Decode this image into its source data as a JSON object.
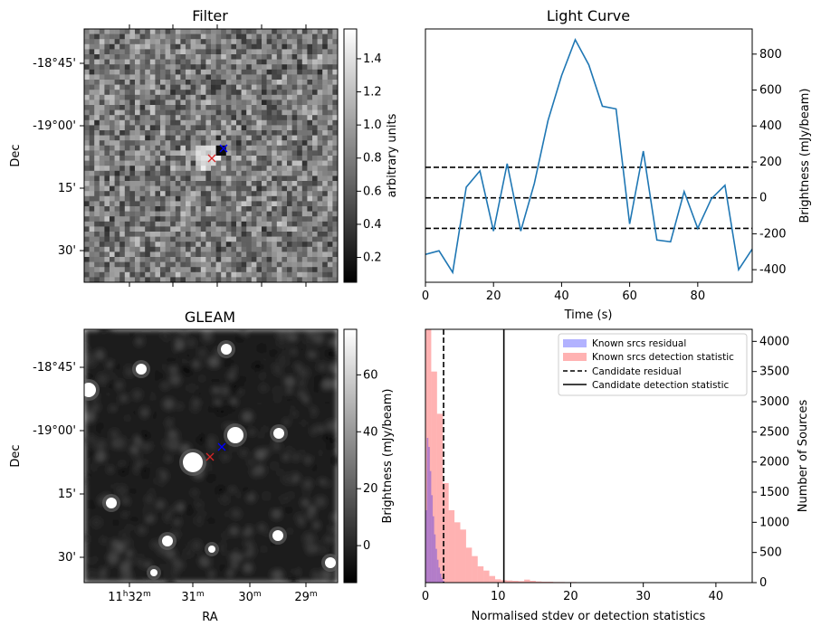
{
  "chart_data": [
    {
      "type": "heatmap",
      "title": "Filter",
      "ylabel": "Dec",
      "xlabel": "",
      "y_ticks": [
        "-18°45'",
        "-19°00'",
        "15'",
        "30'"
      ],
      "colorbar": {
        "label": "arbitrary units",
        "range": [
          0.05,
          1.58
        ],
        "ticks": [
          0.2,
          0.4,
          0.6,
          0.8,
          1.0,
          1.2,
          1.4
        ]
      },
      "markers": [
        {
          "symbol": "x",
          "color": "#d62728"
        },
        {
          "symbol": "x",
          "color": "#0000ff"
        }
      ],
      "colors": {
        "map": "#808080"
      }
    },
    {
      "type": "line",
      "title": "Light Curve",
      "xlabel": "Time (s)",
      "ylabel": "Brightness (mJy/beam)",
      "xlim": [
        0,
        96
      ],
      "ylim": [
        -470,
        940
      ],
      "x_ticks": [
        0,
        20,
        40,
        60,
        80
      ],
      "y_ticks": [
        -400,
        -200,
        0,
        200,
        400,
        600,
        800
      ],
      "x": [
        0,
        4,
        8,
        12,
        16,
        20,
        24,
        28,
        32,
        36,
        40,
        44,
        48,
        52,
        56,
        60,
        64,
        68,
        72,
        76,
        80,
        84,
        88,
        92,
        96
      ],
      "series": [
        {
          "values": [
            -315,
            -295,
            -415,
            60,
            150,
            -185,
            190,
            -185,
            80,
            430,
            680,
            880,
            740,
            510,
            495,
            -145,
            260,
            -235,
            -245,
            35,
            -170,
            -5,
            70,
            -400,
            -285
          ],
          "color": "#1f77b4"
        }
      ],
      "hlines": [
        {
          "y": 170,
          "style": "dashed"
        },
        {
          "y": 0,
          "style": "dashed"
        },
        {
          "y": -170,
          "style": "dashed"
        }
      ],
      "grid": false
    },
    {
      "type": "heatmap",
      "title": "GLEAM",
      "ylabel": "Dec",
      "xlabel": "RA",
      "y_ticks": [
        "-18°45'",
        "-19°00'",
        "15'",
        "30'"
      ],
      "x_ticks": [
        {
          "h": "11",
          "hs": "h",
          "m": "32",
          "ms": "m"
        },
        {
          "h": "",
          "hs": "",
          "m": "31",
          "ms": "m"
        },
        {
          "h": "",
          "hs": "",
          "m": "30",
          "ms": "m"
        },
        {
          "h": "",
          "hs": "",
          "m": "29",
          "ms": "m"
        }
      ],
      "colorbar": {
        "label": "Brightness (mJy/beam)",
        "range": [
          -13,
          76
        ],
        "ticks": [
          0,
          20,
          40,
          60
        ]
      },
      "markers": [
        {
          "symbol": "x",
          "color": "#d62728"
        },
        {
          "symbol": "x",
          "color": "#0000ff"
        }
      ]
    },
    {
      "type": "bar",
      "title": "",
      "xlabel": "Normalised stdev or detection statistics",
      "ylabel": "Number of Sources",
      "xlim": [
        0,
        45
      ],
      "ylim": [
        0,
        4200
      ],
      "x_ticks": [
        0,
        10,
        20,
        30,
        40
      ],
      "y_ticks": [
        0,
        500,
        1000,
        1500,
        2000,
        2500,
        3000,
        3500,
        4000
      ],
      "legend_position": "top-right",
      "bin_width": 0.8,
      "series": [
        {
          "name": "Known srcs residual",
          "color": "#0000ff",
          "alpha": 0.3,
          "bin_starts": [
            0.0,
            0.2,
            0.4,
            0.6,
            0.8,
            1.0,
            1.2,
            1.4,
            1.6,
            1.8,
            2.0,
            2.2,
            2.4
          ],
          "bin_width": 0.2,
          "counts": [
            1200,
            2400,
            2250,
            1850,
            1450,
            1100,
            800,
            560,
            380,
            250,
            150,
            80,
            30
          ]
        },
        {
          "name": "Known srcs detection statistic",
          "color": "#ff0000",
          "alpha": 0.3,
          "bin_starts": [
            0.0,
            0.8,
            1.6,
            2.4,
            3.2,
            4.0,
            4.8,
            5.6,
            6.4,
            7.2,
            8.0,
            8.8,
            9.6,
            10.4,
            11.2,
            12.0,
            12.8,
            13.6,
            14.4,
            15.2,
            16.0,
            16.8,
            17.6,
            18.4,
            19.2,
            20.0,
            42.0
          ],
          "bin_width": 0.8,
          "counts": [
            4200,
            3500,
            2800,
            1650,
            1200,
            1000,
            880,
            580,
            440,
            270,
            200,
            110,
            55,
            40,
            35,
            30,
            25,
            50,
            30,
            20,
            15,
            15,
            10,
            10,
            8,
            10,
            5
          ]
        }
      ],
      "vlines": [
        {
          "name": "Candidate residual",
          "x": 2.5,
          "style": "dashed"
        },
        {
          "name": "Candidate detection statistic",
          "x": 10.8,
          "style": "solid"
        }
      ]
    }
  ]
}
